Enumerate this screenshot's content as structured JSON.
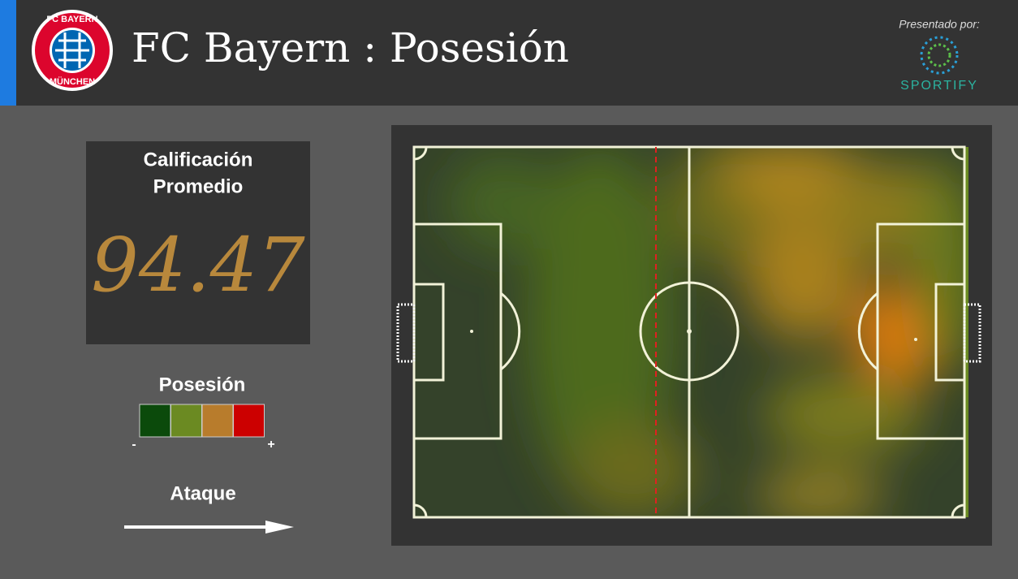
{
  "header": {
    "logo_top": "FC BAYERN",
    "logo_bottom": "MÜNCHEN",
    "team": "FC Bayern",
    "separator": ":",
    "section": "Posesión",
    "sponsor_caption": "Presentado por:",
    "sponsor_name": "SPORTIFY"
  },
  "rating": {
    "label_line1": "Calificación",
    "label_line2": "Promedio",
    "value": "94.47"
  },
  "legend": {
    "title": "Posesión",
    "colors": [
      "#0b4a0b",
      "#6b8a22",
      "#b87c2c",
      "#cc0000"
    ],
    "low": "-",
    "high": "+"
  },
  "direction": {
    "label": "Ataque"
  }
}
